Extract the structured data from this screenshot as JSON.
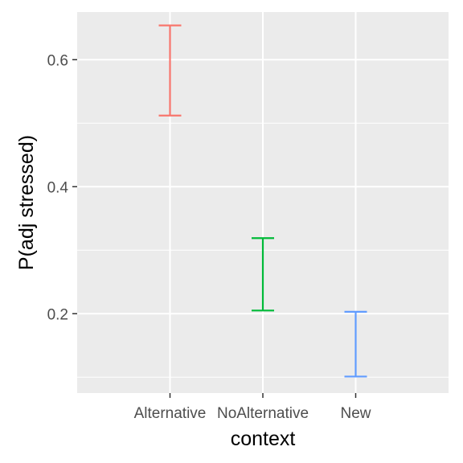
{
  "chart_data": {
    "type": "errorbar",
    "title": "",
    "xlabel": "context",
    "ylabel": "P(adj stressed)",
    "categories": [
      "Alternative",
      "NoAlternative",
      "New"
    ],
    "series": [
      {
        "lower": [
          0.512,
          0.205,
          0.101
        ],
        "upper": [
          0.654,
          0.319,
          0.203
        ]
      }
    ],
    "ylim": [
      0.075,
      0.675
    ],
    "yticks": [
      0.2,
      0.4,
      0.6
    ],
    "ytick_labels": [
      "0.2",
      "0.4",
      "0.6"
    ],
    "grid": true,
    "legend": "none",
    "colors": [
      "#F8766D",
      "#00BA38",
      "#619CFF"
    ],
    "panel_background": "#EBEBEB"
  }
}
